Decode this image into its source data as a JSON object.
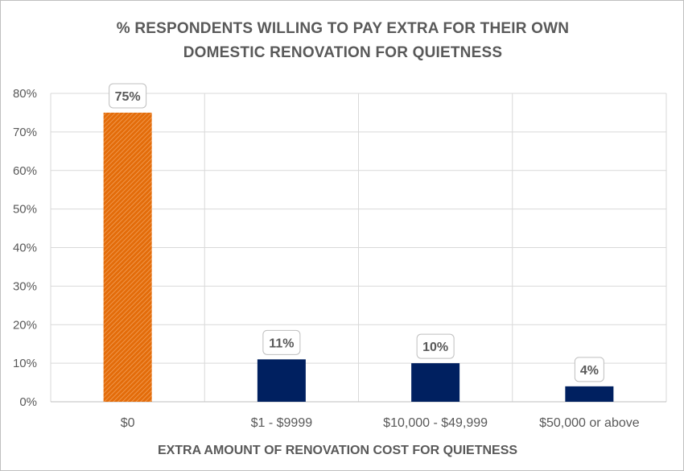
{
  "chart_data": {
    "type": "bar",
    "title_lines": [
      "% RESPONDENTS WILLING TO PAY EXTRA FOR THEIR OWN",
      "DOMESTIC RENOVATION FOR QUIETNESS"
    ],
    "xlabel": "EXTRA AMOUNT OF RENOVATION COST FOR QUIETNESS",
    "ylabel": "",
    "categories": [
      "$0",
      "$1 - $9999",
      "$10,000 - $49,999",
      "$50,000 or above"
    ],
    "values": [
      75,
      11,
      10,
      4
    ],
    "data_labels": [
      "75%",
      "11%",
      "10%",
      "4%"
    ],
    "ylim": [
      0,
      80
    ],
    "yticks": [
      0,
      10,
      20,
      30,
      40,
      50,
      60,
      70,
      80
    ],
    "ytick_labels": [
      "0%",
      "10%",
      "20%",
      "30%",
      "40%",
      "50%",
      "60%",
      "70%",
      "80%"
    ],
    "grid": true,
    "legend": "none",
    "bar_colors": [
      "#e36c0a",
      "#002060",
      "#002060",
      "#002060"
    ],
    "highlight_pattern": "hatched"
  }
}
